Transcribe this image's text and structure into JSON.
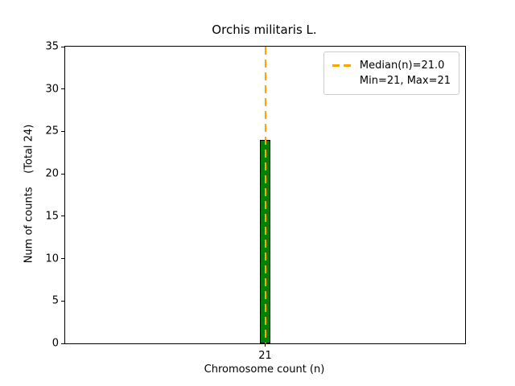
{
  "chart_data": {
    "type": "bar",
    "title": "Orchis militaris L.",
    "xlabel": "Chromosome count (n)",
    "ylabel": "Num of counts    (Total 24)",
    "categories": [
      "21"
    ],
    "values": [
      24
    ],
    "ylim": [
      0,
      35
    ],
    "yticks": [
      0,
      5,
      10,
      15,
      20,
      25,
      30,
      35
    ],
    "grid": false,
    "bar_color": "#008000",
    "bar_edge_color": "#000000",
    "median_line": {
      "x": "21",
      "color": "#FFA500",
      "style": "dashed"
    },
    "stats": {
      "median": 21.0,
      "min": 21,
      "max": 21,
      "total_counts": 24
    },
    "legend": {
      "position": "upper right",
      "entries": [
        "Median(n)=21.0",
        "Min=21, Max=21"
      ]
    }
  }
}
